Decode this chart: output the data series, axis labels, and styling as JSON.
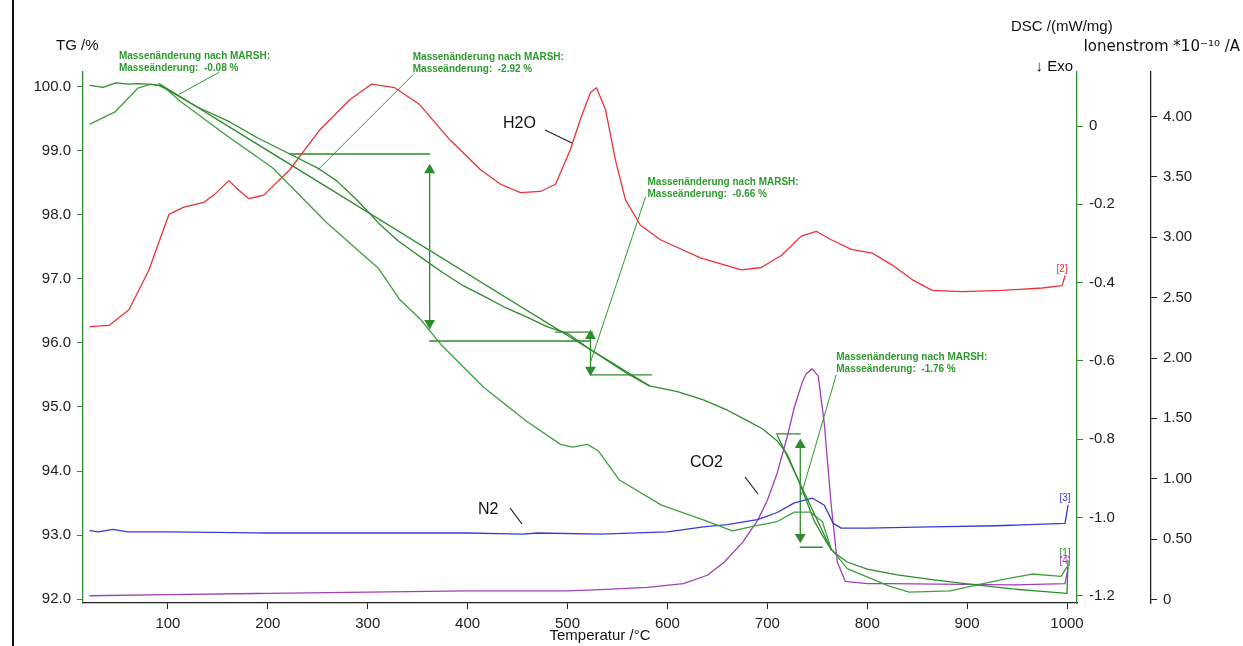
{
  "chart_data": {
    "type": "line",
    "xlabel": "Temperatur /°C",
    "ylabel": "TG /%",
    "y2label": "DSC /(mW/mg)",
    "y3label": "Ionenstrom *10⁻¹⁰ /A",
    "xlim": [
      15,
      1010
    ],
    "xticks": [
      100,
      200,
      300,
      400,
      500,
      600,
      700,
      800,
      900,
      1000
    ],
    "ylim": [
      91.94,
      100.23
    ],
    "yticks": [
      {
        "value": 92,
        "label": "92.0"
      },
      {
        "value": 93,
        "label": "93.0"
      },
      {
        "value": 94,
        "label": "94.0"
      },
      {
        "value": 95,
        "label": "95.0"
      },
      {
        "value": 96,
        "label": "96.0"
      },
      {
        "value": 97,
        "label": "97.0"
      },
      {
        "value": 98,
        "label": "98.0"
      },
      {
        "value": 99,
        "label": "99.0"
      },
      {
        "value": 100,
        "label": "100.0"
      }
    ],
    "y2lim": [
      -1.218,
      0.138
    ],
    "y2ticks": [
      -1.2,
      {
        "value": -1,
        "label": "-1.0"
      },
      -0.8,
      -0.6,
      -0.4,
      -0.2,
      0
    ],
    "y3lim": [
      -0.03,
      4.37
    ],
    "y3ticks": [
      0,
      {
        "value": 0.5,
        "label": "0.50"
      },
      {
        "value": 1,
        "label": "1.00"
      },
      {
        "value": 1.5,
        "label": "1.50"
      },
      {
        "value": 2,
        "label": "2.00"
      },
      {
        "value": 2.5,
        "label": "2.50"
      },
      {
        "value": 3,
        "label": "3.00"
      },
      {
        "value": 3.5,
        "label": "3.50"
      },
      {
        "value": 4,
        "label": "4.00"
      }
    ],
    "grid": false,
    "legend": false,
    "annotations": [
      {
        "text": "Massenänderung nach MARSH:\nMasseänderung:  -0.08 %",
        "x": 111,
        "y": 99.88
      },
      {
        "text": "Massenänderung nach MARSH:\nMasseänderung:  -2.92 %",
        "x": 250,
        "y": 98.7
      },
      {
        "text": "Massenänderung nach MARSH:\nMasseänderung:  -0.66 %",
        "x": 523,
        "y": 95.7
      },
      {
        "text": "Massenänderung nach MARSH:\nMasseänderung:  -1.76 %",
        "x": 734,
        "y": 93.63
      },
      "H2O",
      "N2",
      "CO2",
      "↓ Exo"
    ],
    "series": [
      {
        "name": "[1]",
        "color": "#2e8b2e",
        "x": [
          22,
          35,
          48,
          60,
          70,
          80,
          91,
          100,
          112,
          130,
          162,
          190,
          222,
          250,
          269,
          290,
          311,
          330,
          353,
          375,
          396,
          420,
          438,
          460,
          480,
          501,
          520,
          543,
          560,
          582,
          610,
          636,
          660,
          677,
          695,
          710,
          720,
          731,
          740,
          747,
          755,
          764,
          772,
          780,
          800,
          830,
          863,
          900,
          945,
          975,
          1000,
          1001
        ],
        "values": [
          100.02,
          99.99,
          100.06,
          100.04,
          100.05,
          100.04,
          100.02,
          99.95,
          99.84,
          99.68,
          99.45,
          99.2,
          98.95,
          98.73,
          98.53,
          98.22,
          97.87,
          97.6,
          97.34,
          97.1,
          96.89,
          96.7,
          96.55,
          96.4,
          96.25,
          96.14,
          95.93,
          95.69,
          95.52,
          95.33,
          95.24,
          95.11,
          94.95,
          94.81,
          94.66,
          94.47,
          94.26,
          93.86,
          93.5,
          93.22,
          93.0,
          92.77,
          92.67,
          92.58,
          92.47,
          92.38,
          92.31,
          92.24,
          92.16,
          92.12,
          92.09,
          92.6
        ]
      },
      {
        "color": "#3f9f3f",
        "axis": "y2",
        "x": [
          22,
          47,
          70,
          83,
          95,
          112,
          158,
          205,
          259,
          311,
          332,
          353,
          374,
          416,
          459,
          493,
          505,
          520,
          531,
          552,
          594,
          636,
          665,
          690,
          710,
          727,
          743,
          755,
          764,
          780,
          822,
          842,
          883,
          924,
          965,
          994,
          1000
        ],
        "values": [
          0.005,
          0.036,
          0.097,
          0.107,
          0.102,
          0.064,
          -0.023,
          -0.107,
          -0.247,
          -0.364,
          -0.443,
          -0.494,
          -0.56,
          -0.667,
          -0.754,
          -0.813,
          -0.82,
          -0.813,
          -0.83,
          -0.904,
          -0.968,
          -1.006,
          -1.034,
          -1.02,
          -1.01,
          -0.986,
          -0.986,
          -1.01,
          -1.08,
          -1.13,
          -1.175,
          -1.19,
          -1.187,
          -1.164,
          -1.144,
          -1.15,
          -1.126
        ]
      },
      {
        "name": "[2]",
        "color": "#e8333a",
        "axis": "y3",
        "x": [
          22,
          41,
          61,
          81,
          101,
          116,
          136,
          146,
          161,
          171,
          181,
          196,
          222,
          252,
          282,
          304,
          327,
          352,
          382,
          413,
          433,
          453,
          473,
          488,
          503,
          513,
          523,
          529,
          538,
          548,
          558,
          573,
          593,
          633,
          674,
          694,
          714,
          734,
          749,
          764,
          784,
          805,
          825,
          845,
          865,
          895,
          935,
          975,
          995,
          998
        ],
        "values": [
          2.26,
          2.27,
          2.4,
          2.73,
          3.19,
          3.25,
          3.29,
          3.35,
          3.47,
          3.39,
          3.32,
          3.35,
          3.56,
          3.89,
          4.14,
          4.27,
          4.24,
          4.1,
          3.81,
          3.56,
          3.44,
          3.37,
          3.38,
          3.44,
          3.73,
          3.98,
          4.2,
          4.24,
          4.06,
          3.64,
          3.31,
          3.1,
          2.98,
          2.83,
          2.73,
          2.75,
          2.85,
          3.01,
          3.05,
          2.98,
          2.9,
          2.87,
          2.77,
          2.65,
          2.56,
          2.55,
          2.56,
          2.58,
          2.6,
          2.68
        ]
      },
      {
        "name": "[3]",
        "color": "#3a3ad8",
        "axis": "y3",
        "x": [
          22,
          30,
          45,
          60,
          100,
          200,
          300,
          400,
          455,
          470,
          533,
          600,
          636,
          660,
          690,
          710,
          727,
          745,
          757,
          766,
          774,
          800,
          863,
          930,
          998,
          1001
        ],
        "values": [
          0.57,
          0.56,
          0.58,
          0.56,
          0.56,
          0.55,
          0.55,
          0.55,
          0.54,
          0.55,
          0.54,
          0.56,
          0.6,
          0.62,
          0.66,
          0.72,
          0.8,
          0.84,
          0.78,
          0.63,
          0.59,
          0.59,
          0.6,
          0.61,
          0.63,
          0.78
        ]
      },
      {
        "name": "[4]",
        "color": "#a040b8",
        "axis": "y3",
        "x": [
          22,
          100,
          200,
          300,
          400,
          500,
          533,
          580,
          616,
          640,
          657,
          675,
          690,
          700,
          710,
          720,
          727,
          735,
          739,
          745,
          751,
          757,
          764,
          770,
          778,
          800,
          822,
          945,
          998,
          1001
        ],
        "values": [
          0.03,
          0.04,
          0.05,
          0.06,
          0.07,
          0.07,
          0.08,
          0.1,
          0.13,
          0.2,
          0.31,
          0.47,
          0.65,
          0.82,
          1.05,
          1.35,
          1.59,
          1.8,
          1.87,
          1.91,
          1.85,
          1.46,
          0.78,
          0.31,
          0.15,
          0.13,
          0.13,
          0.12,
          0.13,
          0.26
        ]
      },
      {
        "color": "#2e8b2e",
        "x": [
          91,
          582
        ],
        "values": [
          100.05,
          95.33
        ]
      },
      {
        "color": "#2e8b2e",
        "x": [
          222,
          362
        ],
        "values": [
          98.95,
          98.95
        ]
      },
      {
        "color": "#2e8b2e",
        "x": [
          362,
          523
        ],
        "values": [
          96.03,
          96.03
        ]
      },
      {
        "color": "#2e8b2e",
        "marker": "triangle",
        "x": [
          362,
          362
        ],
        "values": [
          98.7,
          96.31
        ]
      },
      {
        "color": "#2e8b2e",
        "x": [
          488,
          525
        ],
        "values": [
          96.17,
          96.17
        ]
      },
      {
        "color": "#2e8b2e",
        "x": [
          523,
          584
        ],
        "values": [
          95.5,
          95.5
        ]
      },
      {
        "color": "#2e8b2e",
        "marker": "triangle",
        "x": [
          523,
          523
        ],
        "values": [
          96.11,
          95.58
        ]
      },
      {
        "color": "#2e8b2e",
        "x": [
          710,
          764
        ],
        "values": [
          94.56,
          92.77
        ]
      },
      {
        "color": "#2e8b2e",
        "x": [
          709,
          733
        ],
        "values": [
          94.58,
          94.58
        ]
      },
      {
        "color": "#2e8b2e",
        "x": [
          733,
          755
        ],
        "values": [
          92.81,
          92.81
        ]
      },
      {
        "color": "#2e8b2e",
        "marker": "triangle",
        "x": [
          733,
          733
        ],
        "values": [
          94.41,
          92.97
        ]
      }
    ]
  }
}
